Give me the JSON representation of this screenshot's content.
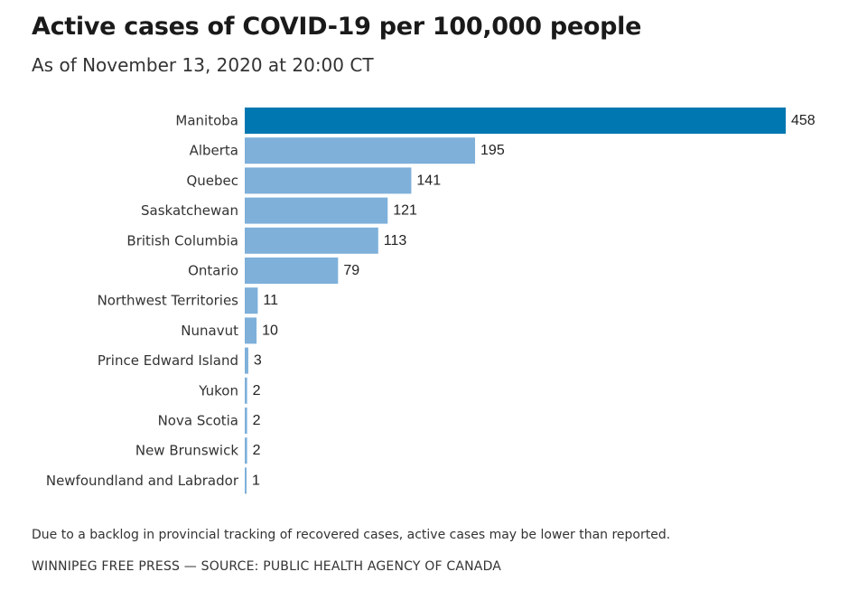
{
  "title": "Active cases of COVID-19 per 100,000 people",
  "subtitle": "As of November 13, 2020 at 20:00 CT",
  "note": "Due to a backlog in provincial tracking of recovered cases, active cases may be lower than reported.",
  "source": "WINNIPEG FREE PRESS — SOURCE: PUBLIC HEALTH AGENCY OF CANADA",
  "colors": {
    "highlight": "#0077b0",
    "bar": "#7eb0da"
  },
  "chart_data": {
    "type": "bar",
    "orientation": "horizontal",
    "categories": [
      "Manitoba",
      "Alberta",
      "Quebec",
      "Saskatchewan",
      "British Columbia",
      "Ontario",
      "Northwest Territories",
      "Nunavut",
      "Prince Edward Island",
      "Yukon",
      "Nova Scotia",
      "New Brunswick",
      "Newfoundland and Labrador"
    ],
    "values": [
      458,
      195,
      141,
      121,
      113,
      79,
      11,
      10,
      3,
      2,
      2,
      2,
      1
    ],
    "data_labels": [
      "458",
      "195",
      "141",
      "121",
      "113",
      "79",
      "11",
      "10",
      "3",
      "2",
      "2",
      "2",
      "1"
    ],
    "highlight_category": "Manitoba",
    "xlim": [
      0,
      458
    ],
    "grid": false,
    "legend": "none"
  }
}
